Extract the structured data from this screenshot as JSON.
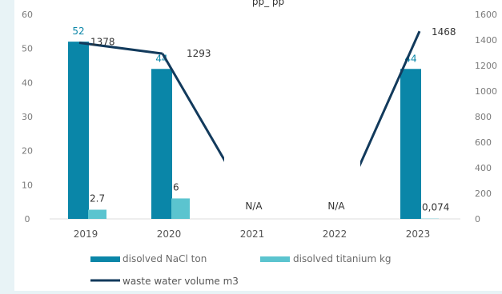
{
  "page": {
    "top_fragment": "pp_ pp"
  },
  "chart_data": {
    "type": "bar",
    "categories": [
      "2019",
      "2020",
      "2021",
      "2022",
      "2023"
    ],
    "series": [
      {
        "name": "disolved NaCl ton",
        "type": "bar",
        "axis": "left",
        "color": "#0a86a8",
        "values": [
          52,
          44,
          null,
          null,
          44
        ],
        "labels": [
          "52",
          "44",
          "",
          "",
          "44"
        ]
      },
      {
        "name": "disolved titanium kg",
        "type": "bar",
        "axis": "left",
        "color": "#5bc4cf",
        "values": [
          2.7,
          6,
          null,
          null,
          0.074
        ],
        "labels": [
          "2.7",
          "6",
          "",
          "",
          "0,074"
        ]
      },
      {
        "name": "waste water volume m3",
        "type": "line",
        "axis": "right",
        "color": "#123a5c",
        "values": [
          1378,
          1293,
          null,
          null,
          1468
        ],
        "labels": [
          "1378",
          "1293",
          "",
          "",
          "1468"
        ]
      }
    ],
    "na_labels": [
      "",
      "",
      "N/A",
      "N/A",
      ""
    ],
    "left_axis": {
      "ticks": [
        "0",
        "10",
        "20",
        "30",
        "40",
        "50",
        "60"
      ],
      "range": [
        0,
        60
      ]
    },
    "right_axis": {
      "ticks": [
        "0",
        "200",
        "400",
        "600",
        "800",
        "1000",
        "1200",
        "1400",
        "1600"
      ],
      "range": [
        0,
        1600
      ]
    },
    "legend": {
      "placement": "bottom"
    }
  }
}
